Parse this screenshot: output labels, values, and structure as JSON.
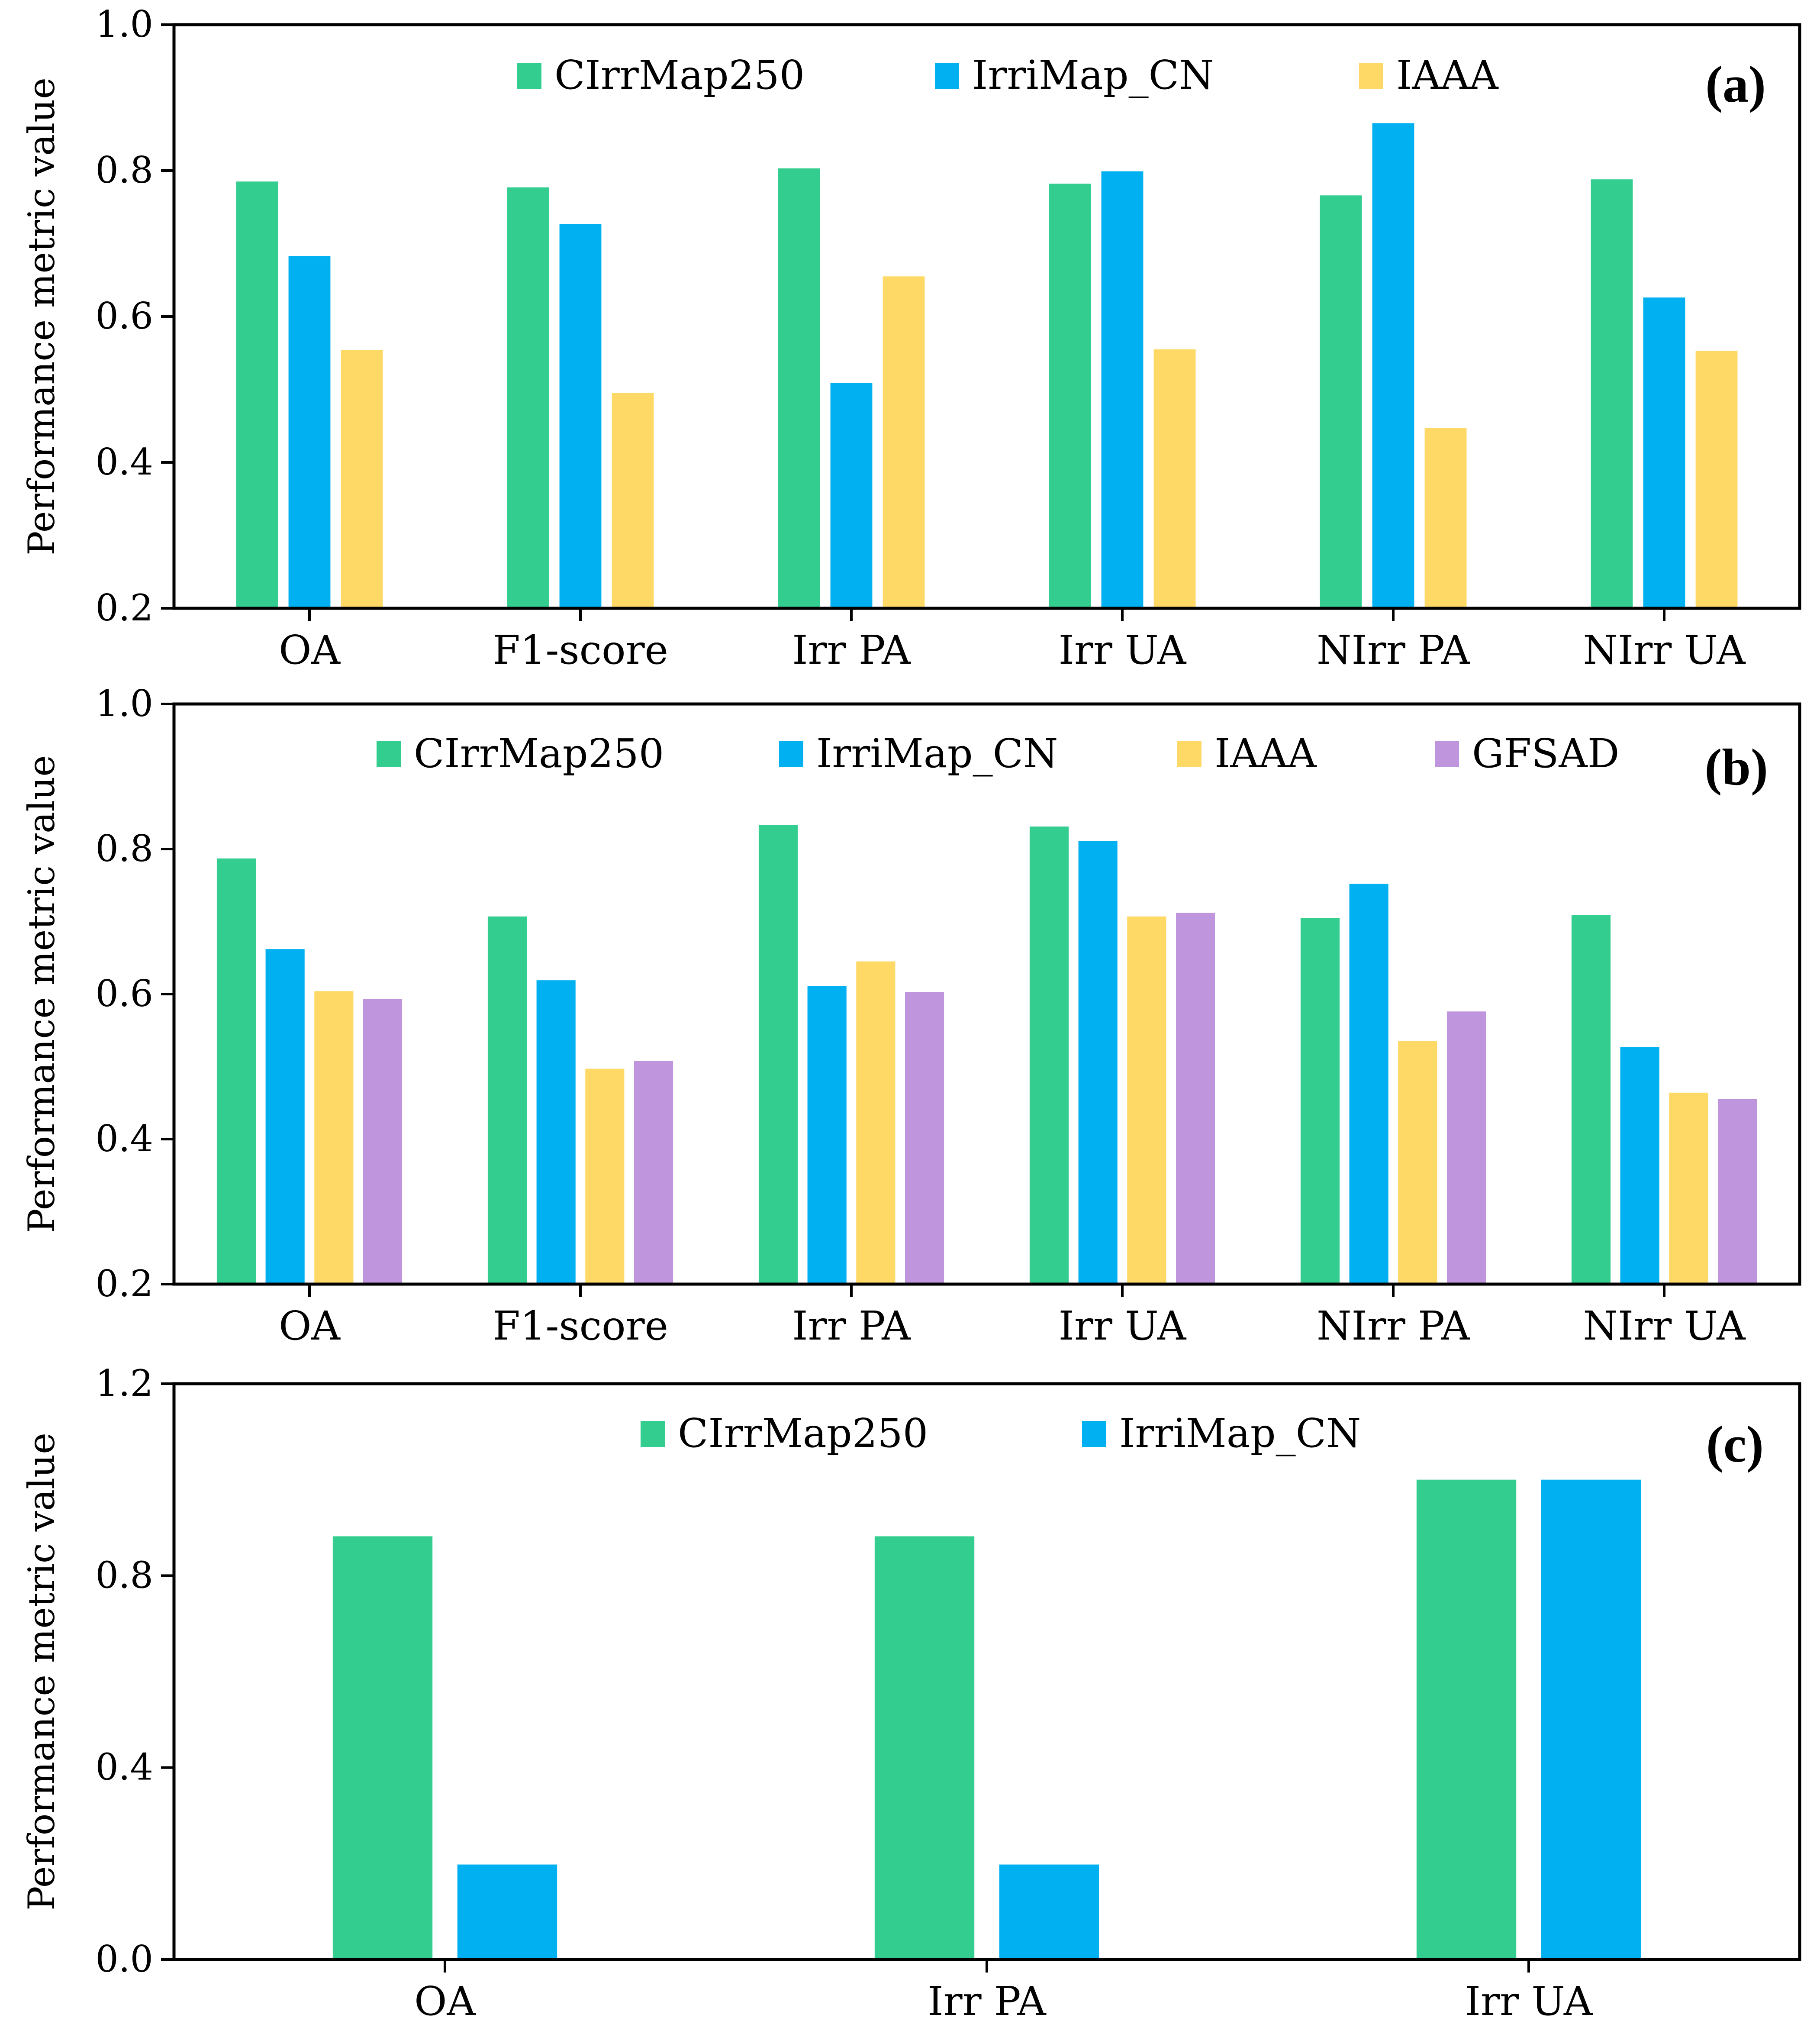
{
  "chart_data": [
    {
      "type": "bar",
      "panel_label": "(a)",
      "title": "",
      "xlabel": "",
      "ylabel": "Performance metric value",
      "ylim": [
        0.2,
        1.0
      ],
      "yticks": [
        0.2,
        0.4,
        0.6,
        0.8,
        1.0
      ],
      "ytick_labels": [
        "0.2",
        "0.4",
        "0.6",
        "0.8",
        "1.0"
      ],
      "grid": false,
      "legend_position": "top",
      "categories": [
        "OA",
        "F1-score",
        "Irr PA",
        "Irr UA",
        "NIrr PA",
        "NIrr UA"
      ],
      "series": [
        {
          "name": "CIrrMap250",
          "color": "#33CD90",
          "values": [
            0.785,
            0.777,
            0.803,
            0.782,
            0.766,
            0.788
          ]
        },
        {
          "name": "IrriMap_CN",
          "color": "#00B0F0",
          "values": [
            0.683,
            0.727,
            0.509,
            0.799,
            0.865,
            0.626
          ]
        },
        {
          "name": "IAAA",
          "color": "#FFD966",
          "values": [
            0.554,
            0.495,
            0.655,
            0.555,
            0.447,
            0.553
          ]
        }
      ]
    },
    {
      "type": "bar",
      "panel_label": "(b)",
      "title": "",
      "xlabel": "",
      "ylabel": "Performance metric value",
      "ylim": [
        0.2,
        1.0
      ],
      "yticks": [
        0.2,
        0.4,
        0.6,
        0.8,
        1.0
      ],
      "ytick_labels": [
        "0.2",
        "0.4",
        "0.6",
        "0.8",
        "1.0"
      ],
      "grid": false,
      "legend_position": "top",
      "categories": [
        "OA",
        "F1-score",
        "Irr PA",
        "Irr UA",
        "NIrr PA",
        "NIrr UA"
      ],
      "series": [
        {
          "name": "CIrrMap250",
          "color": "#33CD90",
          "values": [
            0.787,
            0.707,
            0.833,
            0.831,
            0.705,
            0.709
          ]
        },
        {
          "name": "IrriMap_CN",
          "color": "#00B0F0",
          "values": [
            0.662,
            0.619,
            0.611,
            0.811,
            0.752,
            0.527
          ]
        },
        {
          "name": "IAAA",
          "color": "#FFD966",
          "values": [
            0.604,
            0.497,
            0.645,
            0.707,
            0.535,
            0.464
          ]
        },
        {
          "name": "GFSAD",
          "color": "#BF96DE",
          "values": [
            0.593,
            0.508,
            0.603,
            0.712,
            0.576,
            0.455
          ]
        }
      ]
    },
    {
      "type": "bar",
      "panel_label": "(c)",
      "title": "",
      "xlabel": "",
      "ylabel": "Performance metric value",
      "ylim": [
        0.0,
        1.2
      ],
      "yticks": [
        0.0,
        0.4,
        0.8,
        1.2
      ],
      "ytick_labels": [
        "0.0",
        "0.4",
        "0.8",
        "1.2"
      ],
      "grid": false,
      "legend_position": "top",
      "categories": [
        "OA",
        "Irr PA",
        "Irr UA"
      ],
      "series": [
        {
          "name": "CIrrMap250",
          "color": "#33CD90",
          "values": [
            0.882,
            0.882,
            1.0
          ]
        },
        {
          "name": "IrriMap_CN",
          "color": "#00B0F0",
          "values": [
            0.198,
            0.198,
            1.0
          ]
        }
      ]
    }
  ]
}
